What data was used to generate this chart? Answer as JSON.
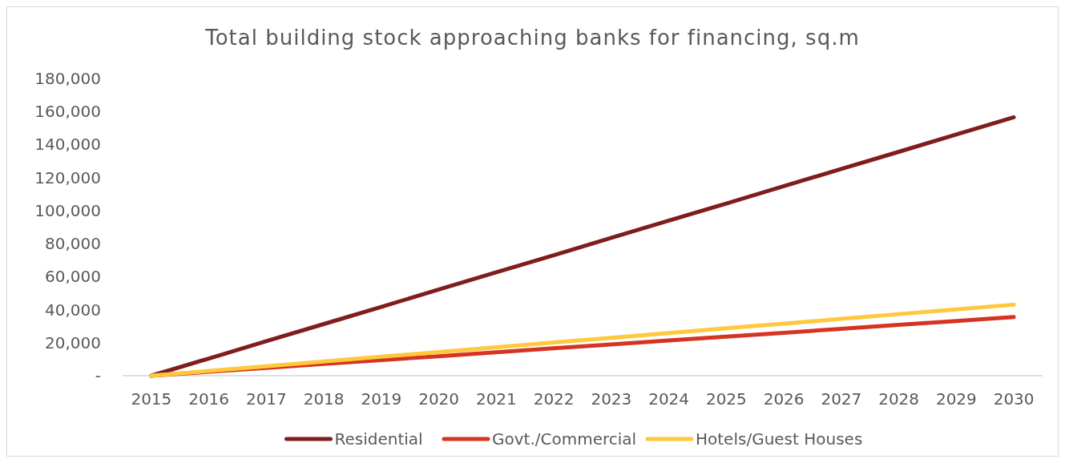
{
  "chart_data": {
    "type": "line",
    "title": "Total building stock approaching banks for financing, sq.m",
    "categories": [
      "2015",
      "2016",
      "2017",
      "2018",
      "2019",
      "2020",
      "2021",
      "2022",
      "2023",
      "2024",
      "2025",
      "2026",
      "2027",
      "2028",
      "2029",
      "2030"
    ],
    "series": [
      {
        "name": "Residential",
        "color": "#7f1d1d",
        "values": [
          0,
          10400,
          20900,
          31300,
          41700,
          52200,
          62600,
          73000,
          83500,
          93900,
          104300,
          114800,
          125200,
          135600,
          146100,
          156500
        ]
      },
      {
        "name": "Govt./Commercial",
        "color": "#d63422",
        "values": [
          0,
          2400,
          4700,
          7100,
          9500,
          11800,
          14200,
          16600,
          18900,
          21300,
          23700,
          26000,
          28400,
          30800,
          33100,
          35500
        ]
      },
      {
        "name": "Hotels/Guest Houses",
        "color": "#ffc83d",
        "values": [
          0,
          2900,
          5700,
          8600,
          11500,
          14300,
          17200,
          20100,
          22900,
          25800,
          28700,
          31500,
          34400,
          37300,
          40100,
          43000
        ]
      }
    ],
    "ylim": [
      0,
      180000
    ],
    "yticks": [
      {
        "value": 0,
        "label": "-"
      },
      {
        "value": 20000,
        "label": "20,000"
      },
      {
        "value": 40000,
        "label": "40,000"
      },
      {
        "value": 60000,
        "label": "60,000"
      },
      {
        "value": 80000,
        "label": "80,000"
      },
      {
        "value": 100000,
        "label": "100,000"
      },
      {
        "value": 120000,
        "label": "120,000"
      },
      {
        "value": 140000,
        "label": "140,000"
      },
      {
        "value": 160000,
        "label": "160,000"
      },
      {
        "value": 180000,
        "label": "180,000"
      }
    ],
    "grid": false,
    "legend": "bottom",
    "marker": "none",
    "line_style": "solid"
  }
}
